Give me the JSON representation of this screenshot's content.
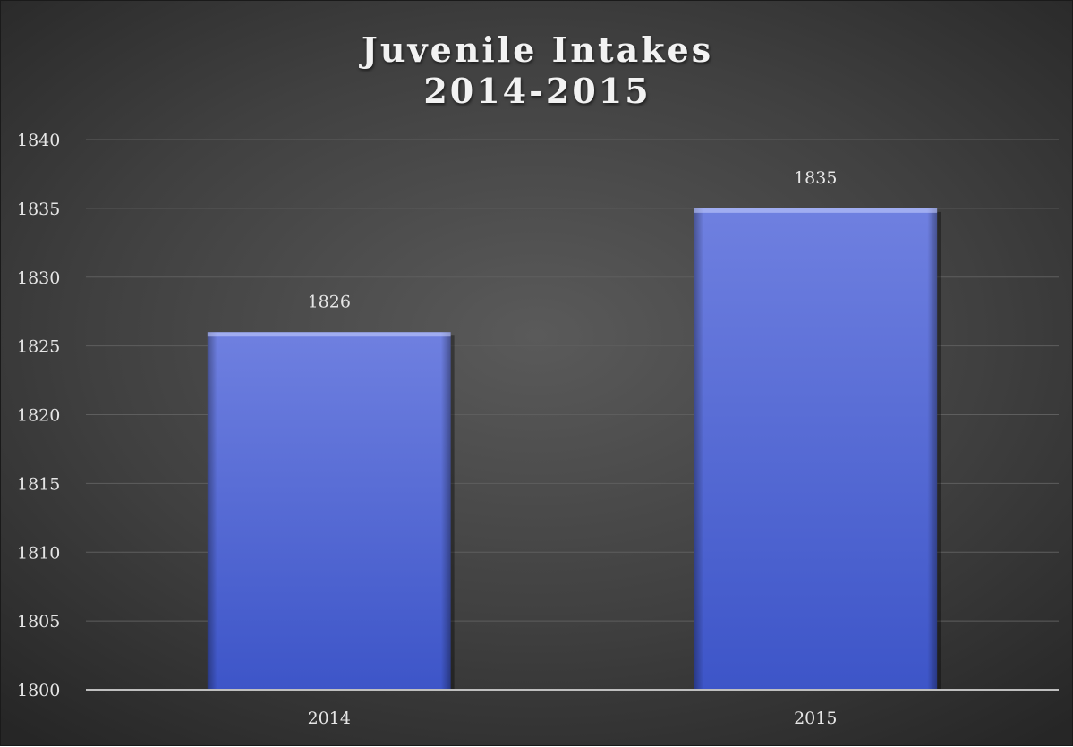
{
  "chart_data": {
    "type": "bar",
    "title_lines": [
      "Juvenile Intakes",
      "2014-2015"
    ],
    "categories": [
      "2014",
      "2015"
    ],
    "values": [
      1826,
      1835
    ],
    "data_labels": [
      "1826",
      "1835"
    ],
    "ylim": [
      1800,
      1840
    ],
    "y_ticks": [
      "1800",
      "1805",
      "1810",
      "1815",
      "1820",
      "1825",
      "1830",
      "1835",
      "1840"
    ],
    "grid": true,
    "legend": "none",
    "colors": {
      "bar_top": "#6f80e0",
      "bar_bottom": "#3d55c8",
      "gridline": "#5e5e5e",
      "axis": "#bfbfbf",
      "text": "#e6e6e6"
    }
  }
}
